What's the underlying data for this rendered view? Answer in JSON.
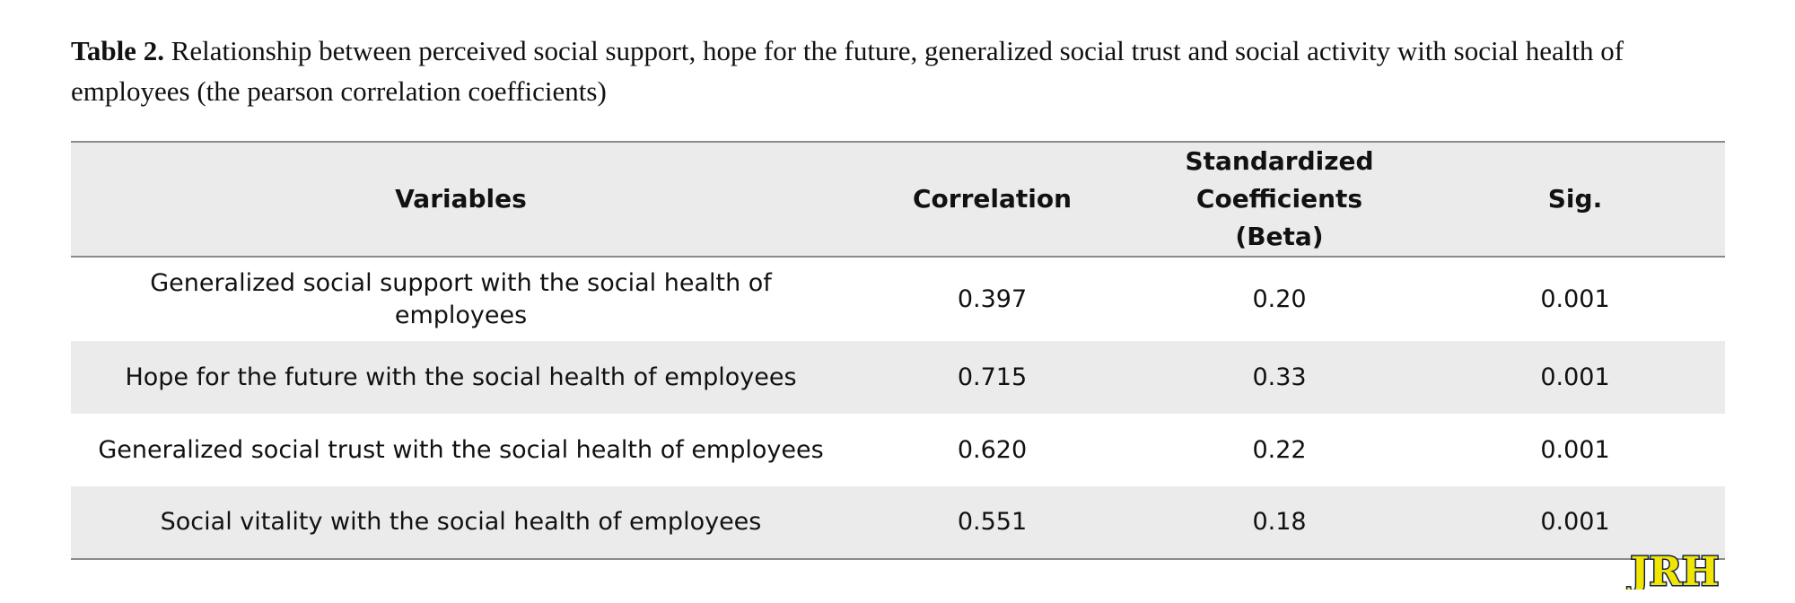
{
  "caption": {
    "label": "Table 2.",
    "text": " Relationship between perceived social support, hope for the future, generalized social trust and social activity with social health of employees (the pearson correlation coefficients)"
  },
  "table": {
    "headers": {
      "variables": "Variables",
      "correlation": "Correlation",
      "beta_line1": "Standardized Coefficients",
      "beta_line2": "(Beta)",
      "sig": "Sig."
    },
    "rows": [
      {
        "variable": "Generalized social support with the social health of employees",
        "correlation": "0.397",
        "beta": "0.20",
        "sig": "0.001"
      },
      {
        "variable": "Hope for the future with the social health of employees",
        "correlation": "0.715",
        "beta": "0.33",
        "sig": "0.001"
      },
      {
        "variable": "Generalized social trust with the social health of employees",
        "correlation": "0.620",
        "beta": "0.22",
        "sig": "0.001"
      },
      {
        "variable": "Social vitality with the social health of employees",
        "correlation": "0.551",
        "beta": "0.18",
        "sig": "0.001"
      }
    ]
  },
  "logo": {
    "text": "JRH",
    "fill_color": "#f2e600",
    "outline_color": "#14234f"
  }
}
